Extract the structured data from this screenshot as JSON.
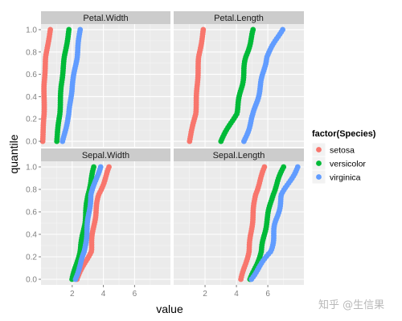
{
  "chart_data": {
    "type": "scatter",
    "xlabel": "value",
    "ylabel": "quantile",
    "x_ticks": [
      2,
      4,
      6
    ],
    "y_ticks": [
      0.0,
      0.2,
      0.4,
      0.6,
      0.8,
      1.0
    ],
    "y_tick_labels": [
      "0.0",
      "0.2",
      "0.4",
      "0.6",
      "0.8",
      "1.0"
    ],
    "xlim": [
      0,
      8.3
    ],
    "ylim": [
      -0.05,
      1.05
    ],
    "legend": {
      "title": "factor(Species)",
      "placement": "right",
      "entries": [
        {
          "label": "setosa",
          "color": "#F8766D"
        },
        {
          "label": "versicolor",
          "color": "#00BA38"
        },
        {
          "label": "virginica",
          "color": "#619CFF"
        }
      ]
    },
    "panels": [
      {
        "title": "Petal.Width",
        "series": {
          "setosa": {
            "min": 0.1,
            "q1": 0.2,
            "med": 0.2,
            "q3": 0.3,
            "max": 0.6
          },
          "versicolor": {
            "min": 1.0,
            "q1": 1.2,
            "med": 1.3,
            "q3": 1.5,
            "max": 1.8
          },
          "virginica": {
            "min": 1.4,
            "q1": 1.8,
            "med": 2.0,
            "q3": 2.3,
            "max": 2.5
          }
        }
      },
      {
        "title": "Petal.Length",
        "series": {
          "setosa": {
            "min": 1.0,
            "q1": 1.4,
            "med": 1.5,
            "q3": 1.6,
            "max": 1.9
          },
          "versicolor": {
            "min": 3.0,
            "q1": 4.0,
            "med": 4.35,
            "q3": 4.6,
            "max": 5.1
          },
          "virginica": {
            "min": 4.5,
            "q1": 5.1,
            "med": 5.55,
            "q3": 5.9,
            "max": 6.9
          }
        }
      },
      {
        "title": "Sepal.Width",
        "series": {
          "setosa": {
            "min": 2.3,
            "q1": 3.2,
            "med": 3.4,
            "q3": 3.7,
            "max": 4.4
          },
          "versicolor": {
            "min": 2.0,
            "q1": 2.5,
            "med": 2.8,
            "q3": 3.0,
            "max": 3.4
          },
          "virginica": {
            "min": 2.2,
            "q1": 2.8,
            "med": 3.0,
            "q3": 3.2,
            "max": 3.8
          }
        }
      },
      {
        "title": "Sepal.Length",
        "series": {
          "setosa": {
            "min": 4.3,
            "q1": 4.8,
            "med": 5.0,
            "q3": 5.2,
            "max": 5.8
          },
          "versicolor": {
            "min": 4.9,
            "q1": 5.6,
            "med": 5.9,
            "q3": 6.3,
            "max": 7.0
          },
          "virginica": {
            "min": 4.9,
            "q1": 6.2,
            "med": 6.5,
            "q3": 6.9,
            "max": 7.9
          }
        }
      }
    ]
  },
  "watermark": "知乎 @生信果"
}
